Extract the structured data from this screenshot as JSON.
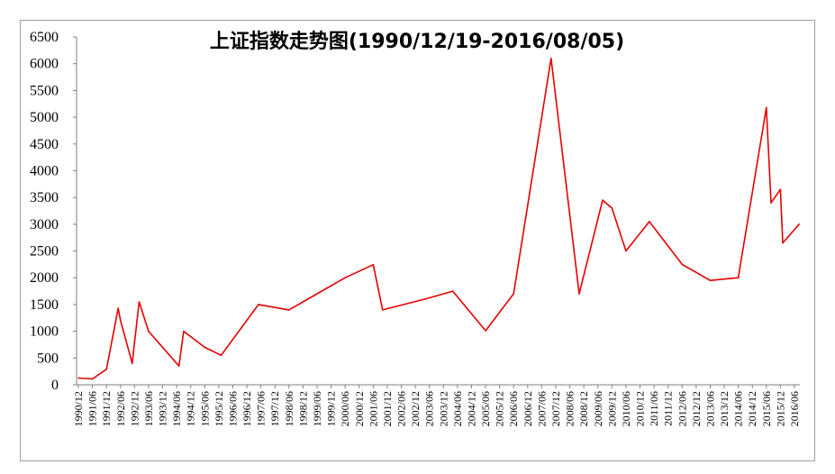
{
  "chart_data": {
    "type": "line",
    "title": "上证指数走势图(1990/12/19-2016/08/05)",
    "xlabel": "",
    "ylabel": "",
    "ylim": [
      0,
      6500
    ],
    "yticks": [
      0,
      500,
      1000,
      1500,
      2000,
      2500,
      3000,
      3500,
      4000,
      4500,
      5000,
      5500,
      6000,
      6500
    ],
    "xticks": [
      "1990/12",
      "1991/06",
      "1991/12",
      "1992/06",
      "1992/12",
      "1993/06",
      "1993/12",
      "1994/06",
      "1994/12",
      "1995/06",
      "1995/12",
      "1996/06",
      "1996/12",
      "1997/06",
      "1997/12",
      "1998/06",
      "1998/12",
      "1999/06",
      "1999/12",
      "2000/06",
      "2000/12",
      "2001/06",
      "2001/12",
      "2002/06",
      "2002/12",
      "2003/06",
      "2003/12",
      "2004/06",
      "2004/12",
      "2005/06",
      "2005/12",
      "2006/06",
      "2006/12",
      "2007/06",
      "2007/12",
      "2008/06",
      "2008/12",
      "2009/06",
      "2009/12",
      "2010/06",
      "2010/12",
      "2011/06",
      "2011/12",
      "2012/06",
      "2012/12",
      "2013/06",
      "2013/12",
      "2014/06",
      "2014/12",
      "2015/06",
      "2015/12",
      "2016/06"
    ],
    "grid": false,
    "legend": "none",
    "line_color": "#e60000",
    "series": [
      {
        "x": [
          "1990/12",
          "1991/06",
          "1991/12",
          "1992/05",
          "1992/06",
          "1992/11",
          "1992/12",
          "1993/02",
          "1993/06",
          "1994/07",
          "1994/09",
          "1995/06",
          "1996/01",
          "1997/05",
          "1998/06",
          "1999/06",
          "2000/06",
          "2001/06",
          "2001/10",
          "2003/04",
          "2004/04",
          "2005/06",
          "2006/06",
          "2007/10",
          "2008/10",
          "2009/08",
          "2009/12",
          "2010/06",
          "2011/04",
          "2012/06",
          "2013/06",
          "2014/06",
          "2015/06",
          "2015/08",
          "2015/12",
          "2016/01",
          "2016/08"
        ],
        "values": [
          127,
          110,
          290,
          1430,
          1200,
          400,
          800,
          1550,
          1000,
          350,
          1000,
          700,
          550,
          1500,
          1400,
          1700,
          2000,
          2245,
          1400,
          1600,
          1750,
          1010,
          1700,
          6100,
          1700,
          3450,
          3300,
          2500,
          3050,
          2250,
          1950,
          2000,
          5180,
          3400,
          3650,
          2650,
          3000
        ]
      }
    ]
  }
}
